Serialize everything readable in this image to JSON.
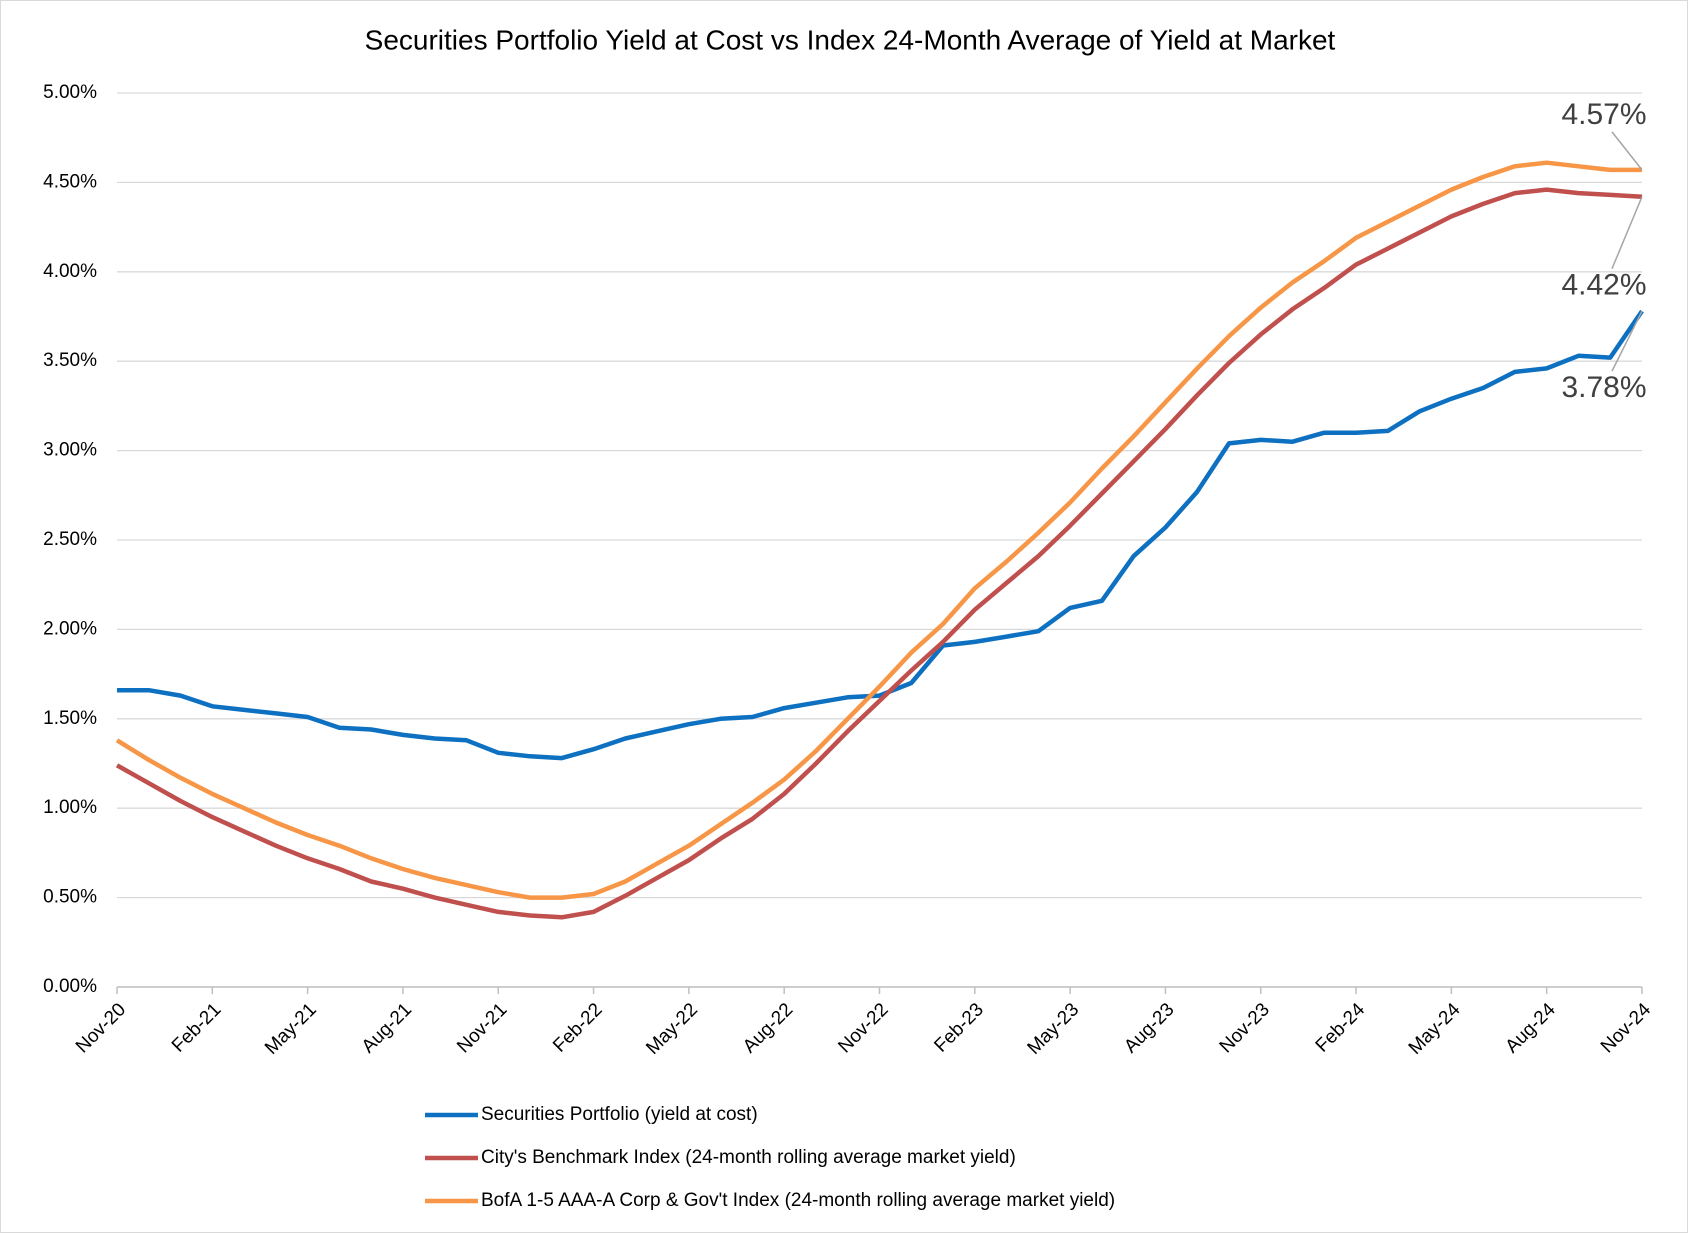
{
  "chart_data": {
    "type": "line",
    "title": "Securities Portfolio Yield at Cost vs Index 24-Month Average of Yield at Market",
    "categories": [
      "Nov-20",
      null,
      null,
      "Feb-21",
      null,
      null,
      "May-21",
      null,
      null,
      "Aug-21",
      null,
      null,
      "Nov-21",
      null,
      null,
      "Feb-22",
      null,
      null,
      "May-22",
      null,
      null,
      "Aug-22",
      null,
      null,
      "Nov-22",
      null,
      null,
      "Feb-23",
      null,
      null,
      "May-23",
      null,
      null,
      "Aug-23",
      null,
      null,
      "Nov-23",
      null,
      null,
      "Feb-24",
      null,
      null,
      "May-24",
      null,
      null,
      "Aug-24",
      null,
      null,
      "Nov-24"
    ],
    "series": [
      {
        "name": "Securities Portfolio (yield at cost)",
        "color": "#0e70c0",
        "values": [
          1.66,
          1.66,
          1.63,
          1.57,
          1.55,
          1.53,
          1.51,
          1.45,
          1.44,
          1.41,
          1.39,
          1.38,
          1.31,
          1.29,
          1.28,
          1.33,
          1.39,
          1.43,
          1.47,
          1.5,
          1.51,
          1.56,
          1.59,
          1.62,
          1.63,
          1.7,
          1.91,
          1.93,
          1.96,
          1.99,
          2.12,
          2.16,
          2.41,
          2.57,
          2.77,
          3.04,
          3.06,
          3.05,
          3.1,
          3.1,
          3.11,
          3.22,
          3.29,
          3.35,
          3.44,
          3.46,
          3.53,
          3.52,
          3.78
        ],
        "value_labels": [
          null,
          null,
          null,
          null,
          null,
          null,
          null,
          null,
          null,
          null,
          null,
          null,
          null,
          null,
          null,
          null,
          null,
          null,
          null,
          null,
          null,
          null,
          null,
          null,
          null,
          null,
          null,
          null,
          null,
          null,
          null,
          null,
          null,
          null,
          null,
          null,
          null,
          null,
          null,
          null,
          null,
          null,
          null,
          null,
          null,
          null,
          null,
          null,
          "3.78%"
        ]
      },
      {
        "name": "City's Benchmark Index (24-month rolling average market yield)",
        "color": "#c0504d",
        "values": [
          1.24,
          1.14,
          1.04,
          0.95,
          0.87,
          0.79,
          0.72,
          0.66,
          0.59,
          0.55,
          0.5,
          0.46,
          0.42,
          0.4,
          0.39,
          0.42,
          0.51,
          0.61,
          0.71,
          0.83,
          0.94,
          1.08,
          1.25,
          1.43,
          1.6,
          1.77,
          1.93,
          2.11,
          2.26,
          2.41,
          2.58,
          2.76,
          2.94,
          3.12,
          3.31,
          3.49,
          3.65,
          3.79,
          3.91,
          4.04,
          4.13,
          4.22,
          4.31,
          4.38,
          4.44,
          4.46,
          4.44,
          4.43,
          4.42
        ],
        "value_labels": [
          null,
          null,
          null,
          null,
          null,
          null,
          null,
          null,
          null,
          null,
          null,
          null,
          null,
          null,
          null,
          null,
          null,
          null,
          null,
          null,
          null,
          null,
          null,
          null,
          null,
          null,
          null,
          null,
          null,
          null,
          null,
          null,
          null,
          null,
          null,
          null,
          null,
          null,
          null,
          null,
          null,
          null,
          null,
          null,
          null,
          null,
          null,
          null,
          "4.42%"
        ]
      },
      {
        "name": "BofA 1-5 AAA-A Corp & Gov't Index (24-month rolling average market yield)",
        "color": "#f79646",
        "values": [
          1.38,
          1.27,
          1.17,
          1.08,
          1.0,
          0.92,
          0.85,
          0.79,
          0.72,
          0.66,
          0.61,
          0.57,
          0.53,
          0.5,
          0.5,
          0.52,
          0.59,
          0.69,
          0.79,
          0.91,
          1.03,
          1.16,
          1.32,
          1.5,
          1.68,
          1.87,
          2.03,
          2.23,
          2.38,
          2.54,
          2.71,
          2.9,
          3.08,
          3.27,
          3.46,
          3.64,
          3.8,
          3.94,
          4.06,
          4.19,
          4.28,
          4.37,
          4.46,
          4.53,
          4.59,
          4.61,
          4.59,
          4.57,
          4.57
        ],
        "value_labels": [
          null,
          null,
          null,
          null,
          null,
          null,
          null,
          null,
          null,
          null,
          null,
          null,
          null,
          null,
          null,
          null,
          null,
          null,
          null,
          null,
          null,
          null,
          null,
          null,
          null,
          null,
          null,
          null,
          null,
          null,
          null,
          null,
          null,
          null,
          null,
          null,
          null,
          null,
          null,
          null,
          null,
          null,
          null,
          null,
          null,
          null,
          null,
          null,
          "4.57%"
        ]
      }
    ],
    "ylim": [
      0,
      5
    ],
    "yticks": [
      {
        "value": 0,
        "label": "0.00%"
      },
      {
        "value": 0.5,
        "label": "0.50%"
      },
      {
        "value": 1,
        "label": "1.00%"
      },
      {
        "value": 1.5,
        "label": "1.50%"
      },
      {
        "value": 2,
        "label": "2.00%"
      },
      {
        "value": 2.5,
        "label": "2.50%"
      },
      {
        "value": 3,
        "label": "3.00%"
      },
      {
        "value": 3.5,
        "label": "3.50%"
      },
      {
        "value": 4,
        "label": "4.00%"
      },
      {
        "value": 4.5,
        "label": "4.50%"
      },
      {
        "value": 5,
        "label": "5.00%"
      }
    ],
    "grid": true,
    "legend": "bottom"
  }
}
